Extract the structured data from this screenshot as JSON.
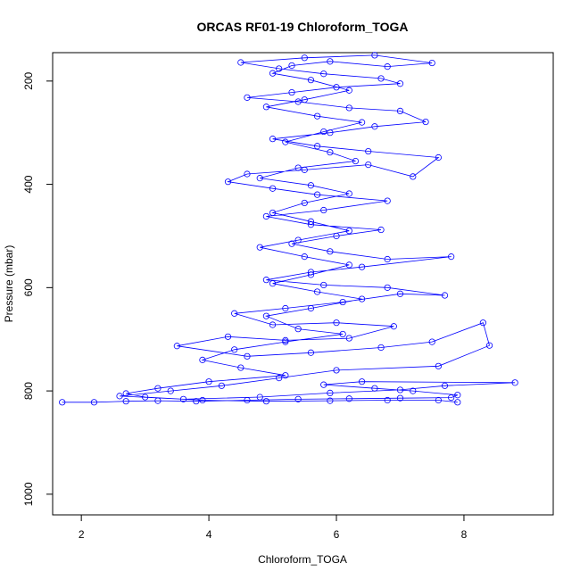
{
  "chart_data": {
    "type": "line",
    "title": "ORCAS RF01-19 Chloroform_TOGA",
    "xlabel": "Chloroform_TOGA",
    "ylabel": "Pressure (mbar)",
    "xlim": [
      1.55,
      9.4
    ],
    "ylim": [
      1040,
      145
    ],
    "y_reversed": true,
    "xticks": [
      2,
      4,
      6,
      8
    ],
    "yticks": [
      200,
      400,
      600,
      800,
      1000
    ],
    "grid": false,
    "legend": "none",
    "color": "#0000ff",
    "marker": "open-circle",
    "series": [
      {
        "points": [
          [
            1.7,
            822
          ],
          [
            2.2,
            822
          ],
          [
            2.7,
            820
          ],
          [
            3.2,
            819
          ],
          [
            3.8,
            820
          ],
          [
            4.6,
            818
          ],
          [
            5.4,
            816
          ],
          [
            6.2,
            815
          ],
          [
            7.0,
            814
          ],
          [
            7.8,
            813
          ],
          [
            7.9,
            808
          ],
          [
            7.2,
            800
          ],
          [
            6.6,
            795
          ],
          [
            5.8,
            788
          ],
          [
            6.4,
            782
          ],
          [
            8.8,
            784
          ],
          [
            7.7,
            790
          ],
          [
            7.0,
            798
          ],
          [
            5.9,
            804
          ],
          [
            4.8,
            812
          ],
          [
            3.6,
            816
          ],
          [
            2.6,
            810
          ],
          [
            3.4,
            800
          ],
          [
            4.2,
            790
          ],
          [
            5.1,
            775
          ],
          [
            6.0,
            760
          ],
          [
            7.6,
            752
          ],
          [
            8.4,
            712
          ],
          [
            8.3,
            668
          ],
          [
            7.5,
            705
          ],
          [
            6.7,
            716
          ],
          [
            5.6,
            726
          ],
          [
            4.6,
            733
          ],
          [
            3.5,
            713
          ],
          [
            4.3,
            695
          ],
          [
            5.2,
            702
          ],
          [
            6.2,
            698
          ],
          [
            6.9,
            675
          ],
          [
            6.0,
            668
          ],
          [
            5.0,
            672
          ],
          [
            4.4,
            650
          ],
          [
            5.2,
            640
          ],
          [
            6.1,
            628
          ],
          [
            7.0,
            612
          ],
          [
            7.7,
            615
          ],
          [
            6.8,
            600
          ],
          [
            5.8,
            595
          ],
          [
            4.9,
            585
          ],
          [
            5.6,
            570
          ],
          [
            6.4,
            560
          ],
          [
            7.8,
            540
          ],
          [
            6.8,
            545
          ],
          [
            5.9,
            530
          ],
          [
            5.3,
            515
          ],
          [
            6.0,
            500
          ],
          [
            6.7,
            488
          ],
          [
            5.6,
            478
          ],
          [
            4.9,
            462
          ],
          [
            5.8,
            450
          ],
          [
            6.8,
            432
          ],
          [
            5.7,
            420
          ],
          [
            5.0,
            408
          ],
          [
            4.3,
            395
          ],
          [
            4.6,
            380
          ],
          [
            5.5,
            372
          ],
          [
            6.5,
            362
          ],
          [
            7.2,
            385
          ],
          [
            7.6,
            348
          ],
          [
            6.5,
            336
          ],
          [
            5.7,
            326
          ],
          [
            5.0,
            312
          ],
          [
            5.9,
            300
          ],
          [
            6.6,
            288
          ],
          [
            7.4,
            279
          ],
          [
            7.0,
            258
          ],
          [
            6.2,
            252
          ],
          [
            5.4,
            240
          ],
          [
            4.6,
            232
          ],
          [
            5.3,
            222
          ],
          [
            6.0,
            212
          ],
          [
            7.0,
            205
          ],
          [
            6.7,
            195
          ],
          [
            5.8,
            186
          ],
          [
            5.1,
            176
          ],
          [
            4.5,
            164
          ],
          [
            5.5,
            155
          ],
          [
            6.6,
            150
          ],
          [
            7.5,
            165
          ],
          [
            6.8,
            172
          ],
          [
            5.9,
            162
          ],
          [
            5.3,
            170
          ],
          [
            5.0,
            185
          ],
          [
            5.6,
            198
          ],
          [
            6.2,
            218
          ],
          [
            5.5,
            236
          ],
          [
            4.9,
            250
          ],
          [
            5.7,
            268
          ],
          [
            6.4,
            280
          ],
          [
            5.8,
            298
          ],
          [
            5.2,
            318
          ],
          [
            5.9,
            338
          ],
          [
            6.3,
            355
          ],
          [
            5.4,
            368
          ],
          [
            4.8,
            388
          ],
          [
            5.6,
            402
          ],
          [
            6.2,
            418
          ],
          [
            5.5,
            436
          ],
          [
            5.0,
            455
          ],
          [
            5.6,
            472
          ],
          [
            6.2,
            490
          ],
          [
            5.4,
            508
          ],
          [
            4.8,
            522
          ],
          [
            5.5,
            540
          ],
          [
            6.2,
            556
          ],
          [
            5.6,
            575
          ],
          [
            5.0,
            592
          ],
          [
            5.7,
            608
          ],
          [
            6.4,
            622
          ],
          [
            5.6,
            640
          ],
          [
            4.9,
            655
          ],
          [
            5.4,
            680
          ],
          [
            6.1,
            690
          ],
          [
            5.2,
            705
          ],
          [
            4.4,
            720
          ],
          [
            3.9,
            740
          ],
          [
            4.5,
            755
          ],
          [
            5.2,
            770
          ],
          [
            4.0,
            782
          ],
          [
            3.2,
            795
          ],
          [
            2.7,
            805
          ],
          [
            3.0,
            812
          ],
          [
            3.9,
            818
          ],
          [
            4.9,
            820
          ],
          [
            5.9,
            819
          ],
          [
            6.8,
            818
          ],
          [
            7.6,
            818
          ],
          [
            7.9,
            822
          ]
        ]
      }
    ]
  }
}
